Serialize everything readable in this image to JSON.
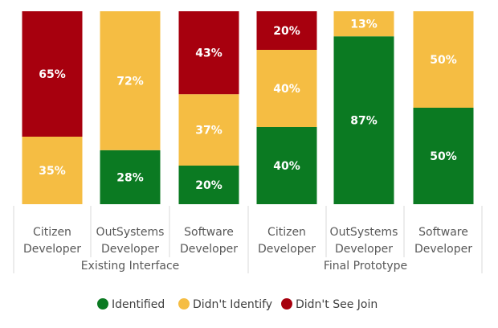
{
  "chart_data": {
    "type": "bar",
    "stacked": true,
    "percent": true,
    "ylim": [
      0,
      100
    ],
    "groups": [
      {
        "label": "Existing Interface",
        "categories": [
          "Citizen\nDeveloper",
          "OutSystems\nDeveloper",
          "Software\nDeveloper"
        ]
      },
      {
        "label": "Final Prototype",
        "categories": [
          "Citizen\nDeveloper",
          "OutSystems\nDeveloper",
          "Software\nDeveloper"
        ]
      }
    ],
    "categories": [
      "Citizen\nDeveloper",
      "OutSystems\nDeveloper",
      "Software\nDeveloper",
      "Citizen\nDeveloper",
      "OutSystems\nDeveloper",
      "Software\nDeveloper"
    ],
    "series": [
      {
        "name": "Identified",
        "color": "#0b7a22",
        "values": [
          0,
          28,
          20,
          40,
          87,
          50
        ]
      },
      {
        "name": "Didn't Identify",
        "color": "#f5bd43",
        "values": [
          35,
          72,
          37,
          40,
          13,
          50
        ]
      },
      {
        "name": "Didn't See Join",
        "color": "#a7000e",
        "values": [
          65,
          0,
          43,
          20,
          0,
          0
        ]
      }
    ],
    "data_labels": true,
    "legend_position": "bottom",
    "grid": false
  }
}
